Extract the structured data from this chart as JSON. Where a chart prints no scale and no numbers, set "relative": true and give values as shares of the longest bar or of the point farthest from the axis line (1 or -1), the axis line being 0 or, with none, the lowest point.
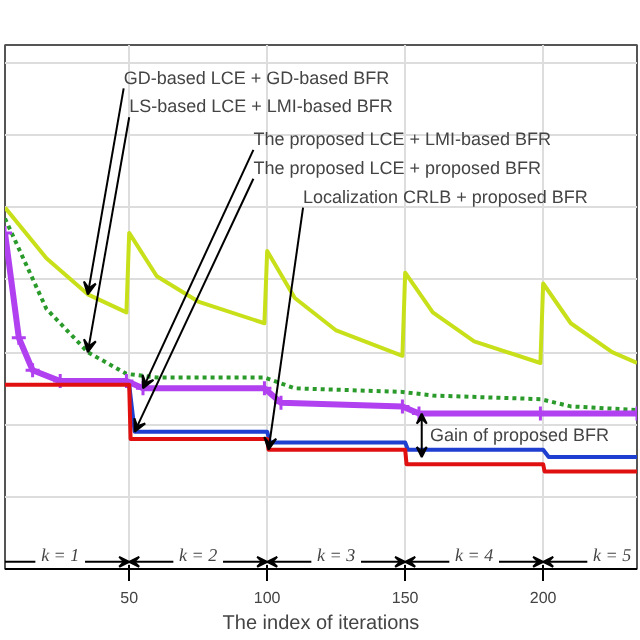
{
  "chart_data": {
    "type": "line",
    "relative": true,
    "xlabel": "The index of iterations",
    "xlim": [
      5,
      234
    ],
    "xticks": [
      50,
      100,
      150,
      200
    ],
    "grid": true,
    "series": [
      {
        "name": "GD-based LCE + GD-based BFR",
        "color": "#c8e01a",
        "line_style": "solid",
        "marker": "none",
        "x": [
          5,
          20,
          35,
          49,
          50,
          60,
          75,
          99,
          100,
          110,
          125,
          149,
          150,
          160,
          175,
          199,
          200,
          210,
          225,
          234
        ],
        "values": [
          1.0,
          0.86,
          0.76,
          0.71,
          0.93,
          0.81,
          0.74,
          0.68,
          0.88,
          0.75,
          0.66,
          0.59,
          0.82,
          0.71,
          0.63,
          0.57,
          0.79,
          0.68,
          0.6,
          0.57
        ]
      },
      {
        "name": "LS-based LCE + LMI-based BFR",
        "color": "#2a9a2a",
        "line_style": "dotted",
        "marker": "none",
        "x": [
          5,
          20,
          35,
          49,
          60,
          99,
          110,
          149,
          160,
          199,
          210,
          234
        ],
        "values": [
          0.97,
          0.72,
          0.6,
          0.54,
          0.53,
          0.53,
          0.5,
          0.49,
          0.48,
          0.47,
          0.45,
          0.44
        ]
      },
      {
        "name": "The proposed LCE + LMI-based BFR",
        "color": "#b040f0",
        "line_style": "solid",
        "marker": "cross",
        "x": [
          5,
          10,
          15,
          25,
          49,
          55,
          99,
          105,
          149,
          155,
          199,
          234
        ],
        "values": [
          0.93,
          0.64,
          0.55,
          0.52,
          0.52,
          0.5,
          0.5,
          0.46,
          0.45,
          0.43,
          0.43,
          0.43
        ]
      },
      {
        "name": "The proposed LCE + proposed BFR",
        "color": "#1f3fd0",
        "line_style": "solid",
        "marker": "none",
        "x": [
          50,
          52,
          100,
          101,
          150,
          151,
          200,
          202,
          234
        ],
        "values": [
          0.51,
          0.38,
          0.38,
          0.35,
          0.35,
          0.33,
          0.33,
          0.31,
          0.31
        ]
      },
      {
        "name": "Localization CRLB + proposed BFR",
        "color": "#e01010",
        "line_style": "solid",
        "marker": "none",
        "x": [
          5,
          50,
          50.5,
          100,
          100.5,
          150,
          150.5,
          200,
          200.5,
          234
        ],
        "values": [
          0.51,
          0.51,
          0.36,
          0.36,
          0.33,
          0.33,
          0.29,
          0.29,
          0.27,
          0.27
        ]
      }
    ],
    "annotations": [
      "Gain of proposed BFR",
      "k = 1",
      "k = 2",
      "k = 3",
      "k = 4",
      "k = 5"
    ]
  }
}
